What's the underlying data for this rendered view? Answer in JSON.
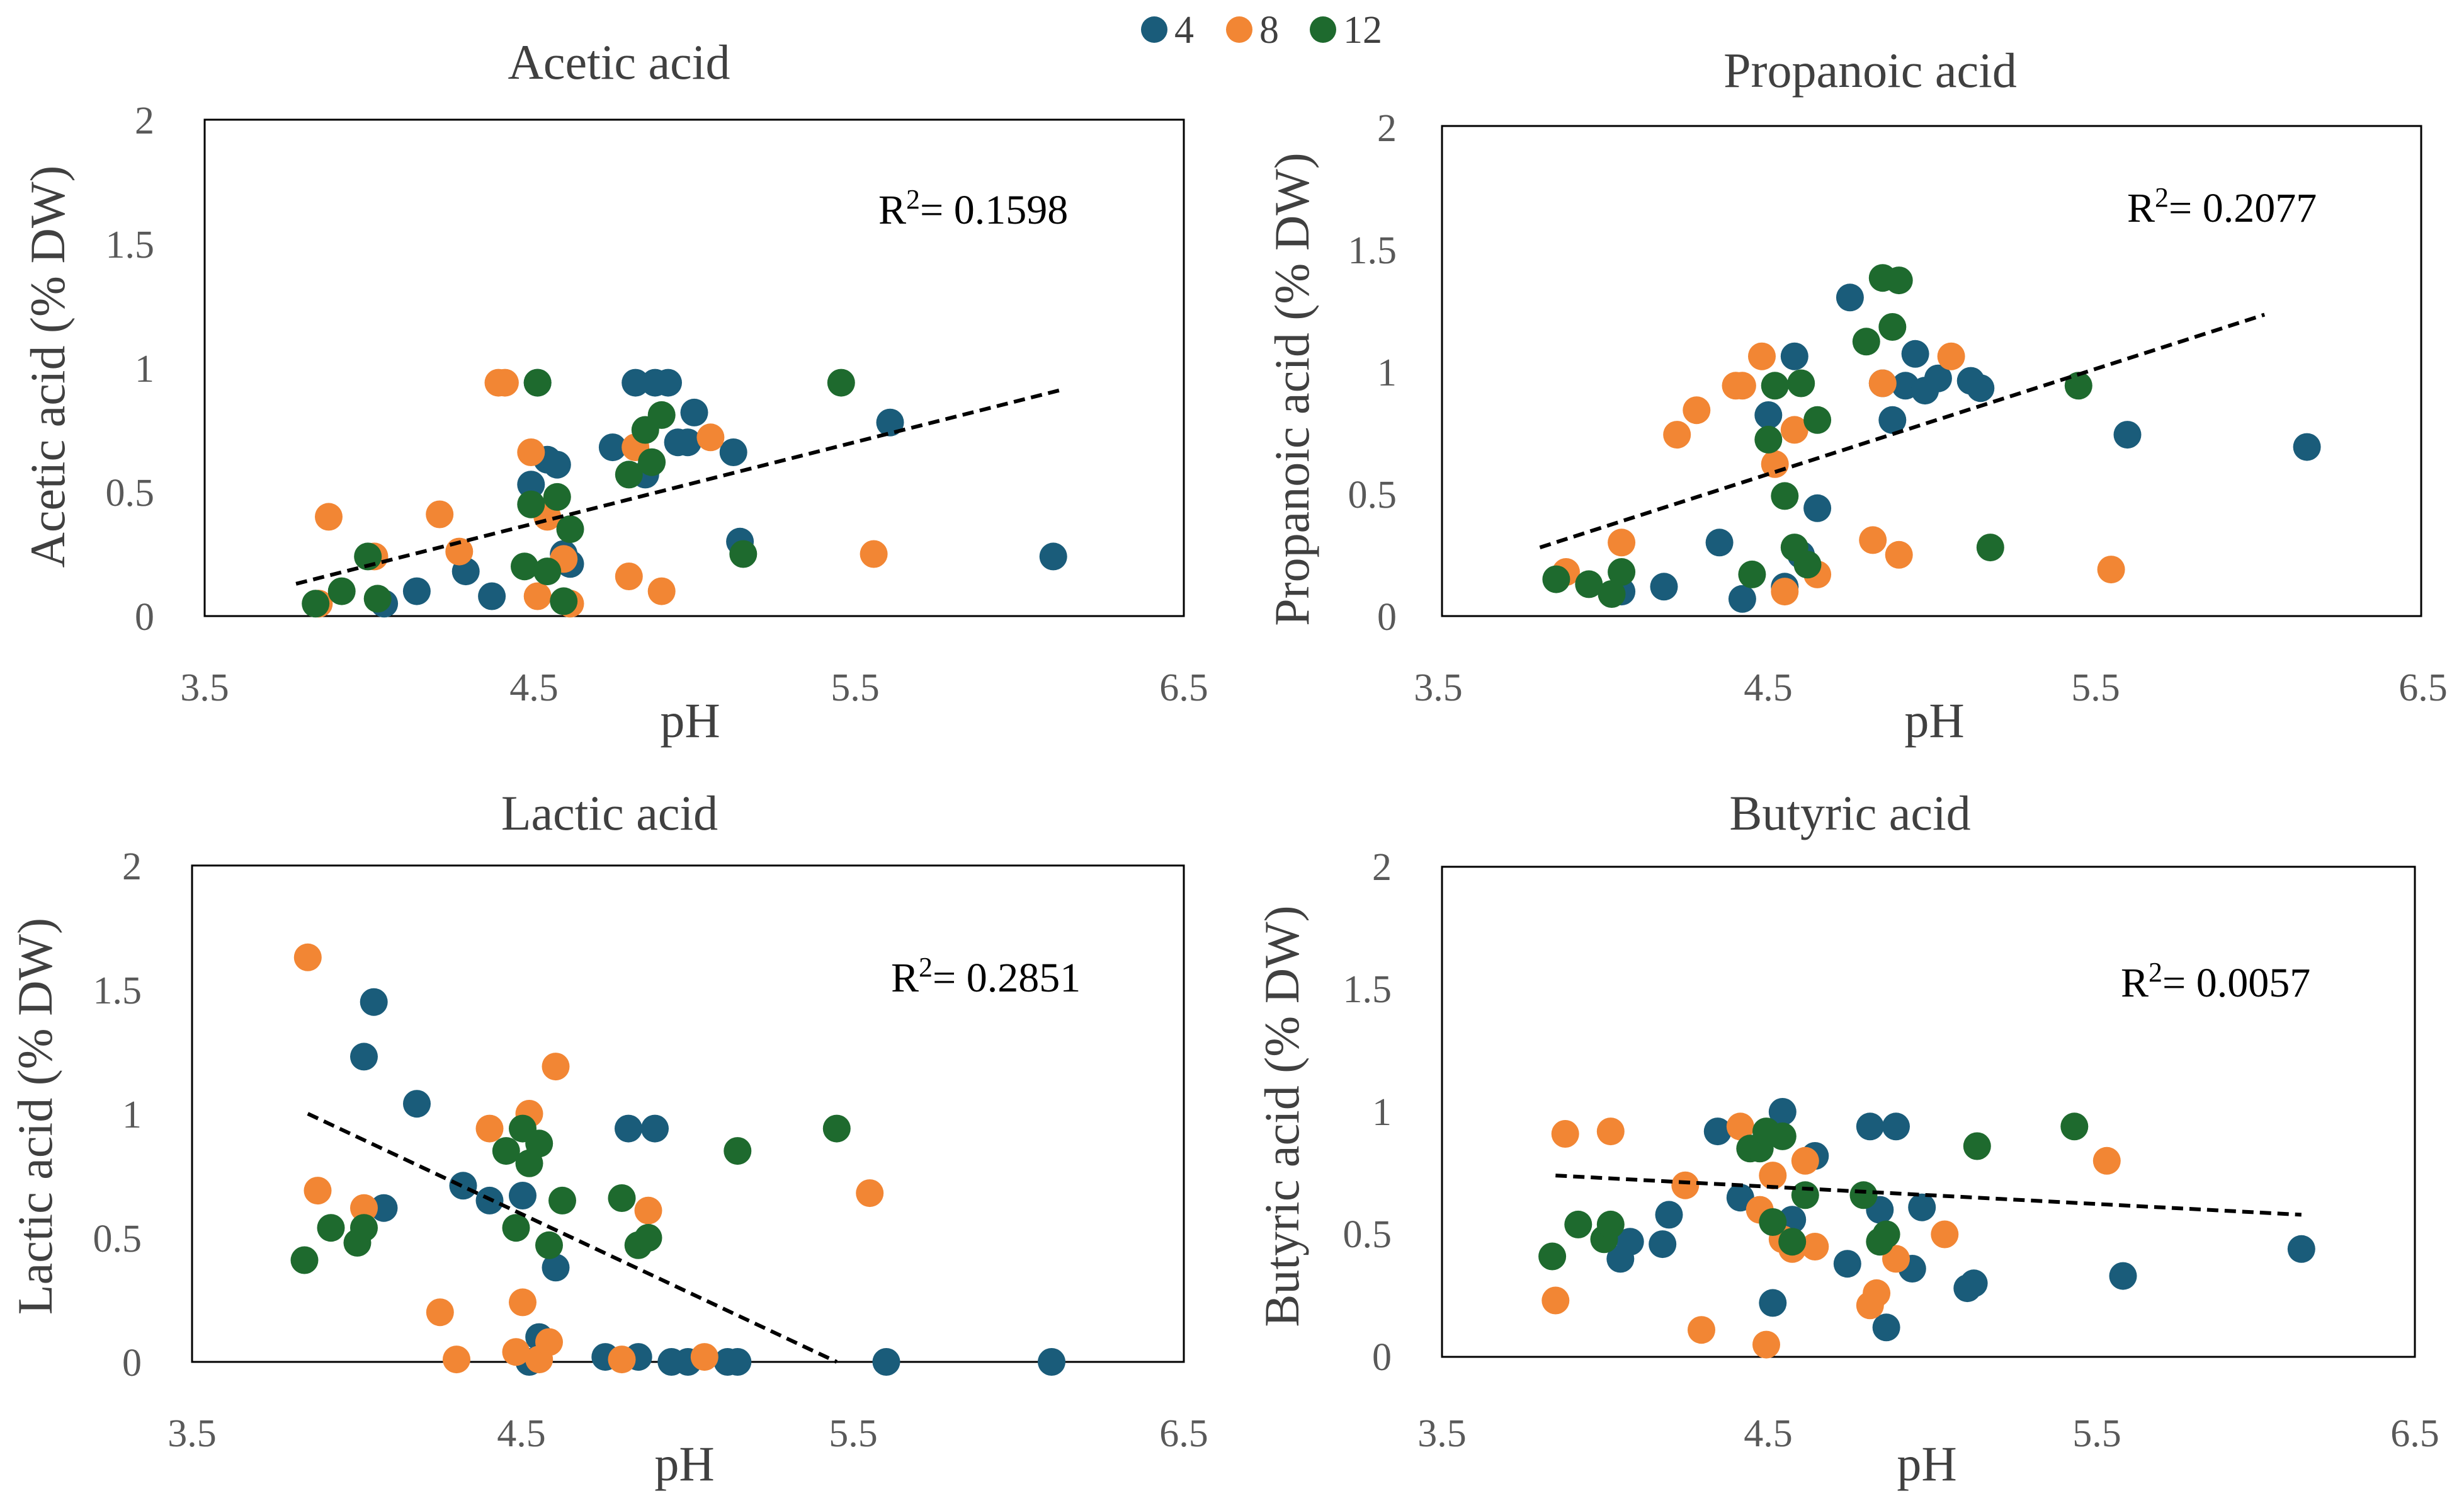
{
  "legend": {
    "entries": [
      {
        "label": "4",
        "color": "#1A5C7A"
      },
      {
        "label": "8",
        "color": "#F28634"
      },
      {
        "label": "12",
        "color": "#1E6A2E"
      }
    ]
  },
  "chart_data": [
    {
      "type": "scatter",
      "title": "Acetic acid",
      "xlabel": "pH",
      "ylabel": "Acetic acid (% DW)",
      "xlim": [
        3.5,
        6.5
      ],
      "ylim": [
        0,
        2
      ],
      "xticks": [
        "3.5",
        "4.5",
        "5.5",
        "6.5"
      ],
      "yticks": [
        "0",
        "0.5",
        "1",
        "1.5",
        "2"
      ],
      "r2_label": "R",
      "r2_sup": "2",
      "r2_value": "= 0.1598",
      "trendline": {
        "x": [
          3.78,
          6.12
        ],
        "y": [
          0.13,
          0.91
        ]
      },
      "series": [
        {
          "name": "4",
          "x": [
            4.05,
            4.15,
            4.3,
            4.38,
            4.5,
            4.52,
            4.55,
            4.58,
            4.6,
            4.62,
            4.75,
            4.82,
            4.85,
            4.88,
            4.92,
            4.95,
            5.0,
            4.98,
            5.12,
            5.14,
            5.6,
            6.1
          ],
          "y": [
            0.05,
            0.1,
            0.18,
            0.08,
            0.53,
            0.94,
            0.63,
            0.61,
            0.25,
            0.21,
            0.68,
            0.94,
            0.57,
            0.94,
            0.94,
            0.7,
            0.82,
            0.7,
            0.66,
            0.3,
            0.78,
            0.24
          ]
        },
        {
          "name": "8",
          "x": [
            3.85,
            3.88,
            4.02,
            4.22,
            4.28,
            4.4,
            4.42,
            4.5,
            4.52,
            4.55,
            4.6,
            4.62,
            4.8,
            4.82,
            4.9,
            5.05,
            5.55
          ],
          "y": [
            0.05,
            0.4,
            0.24,
            0.41,
            0.26,
            0.94,
            0.94,
            0.66,
            0.08,
            0.4,
            0.23,
            0.05,
            0.16,
            0.68,
            0.1,
            0.72,
            0.25
          ]
        },
        {
          "name": "12",
          "x": [
            3.84,
            3.92,
            4.0,
            4.03,
            4.48,
            4.5,
            4.52,
            4.55,
            4.58,
            4.6,
            4.62,
            4.8,
            4.85,
            4.87,
            4.9,
            5.15,
            5.45
          ],
          "y": [
            0.05,
            0.1,
            0.24,
            0.07,
            0.2,
            0.45,
            0.94,
            0.18,
            0.48,
            0.06,
            0.35,
            0.57,
            0.75,
            0.62,
            0.81,
            0.25,
            0.94
          ]
        }
      ]
    },
    {
      "type": "scatter",
      "title": "Propanoic acid",
      "xlabel": "pH",
      "ylabel": "Propanoic acid (% DW)",
      "xlim": [
        3.5,
        6.5
      ],
      "ylim": [
        0,
        2
      ],
      "xticks": [
        "3.5",
        "4.5",
        "5.5",
        "6.5"
      ],
      "yticks": [
        "0",
        "0.5",
        "1",
        "1.5",
        "2"
      ],
      "r2_label": "R",
      "r2_sup": "2",
      "r2_value": "= 0.2077",
      "trendline": {
        "x": [
          3.8,
          6.02
        ],
        "y": [
          0.28,
          1.23
        ]
      },
      "series": [
        {
          "name": "4",
          "x": [
            4.05,
            4.18,
            4.35,
            4.42,
            4.5,
            4.55,
            4.58,
            4.6,
            4.65,
            4.75,
            4.85,
            4.88,
            4.92,
            4.95,
            4.98,
            5.02,
            5.12,
            5.15,
            5.6,
            6.15
          ],
          "y": [
            0.1,
            0.12,
            0.3,
            0.07,
            0.82,
            0.12,
            1.06,
            0.25,
            0.44,
            1.3,
            0.95,
            0.8,
            0.94,
            1.07,
            0.92,
            0.97,
            0.96,
            0.93,
            0.74,
            0.69
          ]
        },
        {
          "name": "8",
          "x": [
            3.88,
            4.05,
            4.22,
            4.28,
            4.4,
            4.42,
            4.48,
            4.52,
            4.55,
            4.58,
            4.65,
            4.82,
            4.85,
            4.9,
            5.06,
            5.55
          ],
          "y": [
            0.18,
            0.3,
            0.74,
            0.84,
            0.94,
            0.94,
            1.06,
            0.62,
            0.1,
            0.76,
            0.17,
            0.31,
            0.95,
            0.25,
            1.06,
            0.19
          ]
        },
        {
          "name": "12",
          "x": [
            3.85,
            3.95,
            4.02,
            4.05,
            4.45,
            4.5,
            4.52,
            4.55,
            4.58,
            4.6,
            4.62,
            4.65,
            4.8,
            4.85,
            4.88,
            4.9,
            5.18,
            5.45
          ],
          "y": [
            0.15,
            0.13,
            0.09,
            0.18,
            0.17,
            0.72,
            0.94,
            0.49,
            0.28,
            0.95,
            0.21,
            0.8,
            1.12,
            1.38,
            1.18,
            1.37,
            0.28,
            0.94
          ]
        }
      ]
    },
    {
      "type": "scatter",
      "title": "Lactic acid",
      "xlabel": "pH",
      "ylabel": "Lactic acid (% DW)",
      "xlim": [
        3.5,
        6.5
      ],
      "ylim": [
        0,
        2
      ],
      "xticks": [
        "3.5",
        "4.5",
        "5.5",
        "6.5"
      ],
      "yticks": [
        "0",
        "0.5",
        "1",
        "1.5",
        "2"
      ],
      "r2_label": "R",
      "r2_sup": "2",
      "r2_value": "= 0.2851",
      "trendline": {
        "x": [
          3.85,
          5.45
        ],
        "y": [
          1.0,
          0.0
        ]
      },
      "series": [
        {
          "name": "4",
          "x": [
            4.02,
            4.05,
            4.08,
            4.18,
            4.32,
            4.4,
            4.5,
            4.52,
            4.55,
            4.6,
            4.75,
            4.82,
            4.85,
            4.9,
            4.95,
            5.0,
            5.12,
            5.15,
            5.6,
            6.1
          ],
          "y": [
            1.23,
            1.45,
            0.62,
            1.04,
            0.71,
            0.65,
            0.67,
            0.0,
            0.1,
            0.38,
            0.02,
            0.94,
            0.02,
            0.94,
            0.0,
            0.0,
            0.0,
            0.0,
            0.0,
            0.0
          ]
        },
        {
          "name": "8",
          "x": [
            3.85,
            3.88,
            4.02,
            4.25,
            4.3,
            4.4,
            4.48,
            4.5,
            4.52,
            4.55,
            4.58,
            4.6,
            4.8,
            4.88,
            5.05,
            5.55
          ],
          "y": [
            1.63,
            0.69,
            0.62,
            0.2,
            0.01,
            0.94,
            0.04,
            0.24,
            1.0,
            0.01,
            0.08,
            1.19,
            0.01,
            0.61,
            0.02,
            0.68
          ]
        },
        {
          "name": "12",
          "x": [
            3.84,
            3.92,
            4.0,
            4.02,
            4.45,
            4.48,
            4.5,
            4.52,
            4.55,
            4.58,
            4.62,
            4.8,
            4.85,
            4.88,
            5.15,
            5.45
          ],
          "y": [
            0.41,
            0.54,
            0.48,
            0.54,
            0.85,
            0.54,
            0.94,
            0.8,
            0.88,
            0.47,
            0.65,
            0.66,
            0.47,
            0.5,
            0.85,
            0.94
          ]
        }
      ]
    },
    {
      "type": "scatter",
      "title": "Butyric acid",
      "xlabel": "pH",
      "ylabel": "Butyric acid (% DW)",
      "xlim": [
        3.5,
        6.5
      ],
      "ylim": [
        0,
        2
      ],
      "xticks": [
        "3.5",
        "4.5",
        "5.5",
        "6.5"
      ],
      "yticks": [
        "0",
        "0.5",
        "1",
        "1.5",
        "2"
      ],
      "r2_label": "R",
      "r2_sup": "2",
      "r2_value": "= 0.0057",
      "trendline": {
        "x": [
          3.85,
          6.15
        ],
        "y": [
          0.74,
          0.58
        ]
      },
      "series": [
        {
          "name": "4",
          "x": [
            4.05,
            4.08,
            4.18,
            4.2,
            4.35,
            4.42,
            4.52,
            4.55,
            4.58,
            4.65,
            4.75,
            4.82,
            4.85,
            4.87,
            4.9,
            4.95,
            4.98,
            5.12,
            5.14,
            5.6,
            6.15
          ],
          "y": [
            0.4,
            0.47,
            0.46,
            0.58,
            0.92,
            0.65,
            0.22,
            1.0,
            0.56,
            0.82,
            0.38,
            0.94,
            0.6,
            0.12,
            0.94,
            0.36,
            0.61,
            0.28,
            0.3,
            0.33,
            0.44
          ]
        },
        {
          "name": "8",
          "x": [
            3.85,
            3.88,
            4.02,
            4.25,
            4.3,
            4.42,
            4.48,
            4.5,
            4.52,
            4.55,
            4.58,
            4.62,
            4.65,
            4.82,
            4.84,
            4.9,
            5.05,
            5.55
          ],
          "y": [
            0.23,
            0.91,
            0.92,
            0.7,
            0.11,
            0.94,
            0.6,
            0.05,
            0.74,
            0.48,
            0.44,
            0.8,
            0.45,
            0.21,
            0.26,
            0.4,
            0.5,
            0.8
          ]
        },
        {
          "name": "12",
          "x": [
            3.84,
            3.92,
            4.0,
            4.02,
            4.45,
            4.48,
            4.5,
            4.52,
            4.55,
            4.58,
            4.62,
            4.8,
            4.85,
            4.87,
            5.15,
            5.45
          ],
          "y": [
            0.41,
            0.54,
            0.48,
            0.54,
            0.85,
            0.85,
            0.92,
            0.55,
            0.9,
            0.47,
            0.66,
            0.66,
            0.47,
            0.5,
            0.86,
            0.94
          ]
        }
      ]
    }
  ]
}
